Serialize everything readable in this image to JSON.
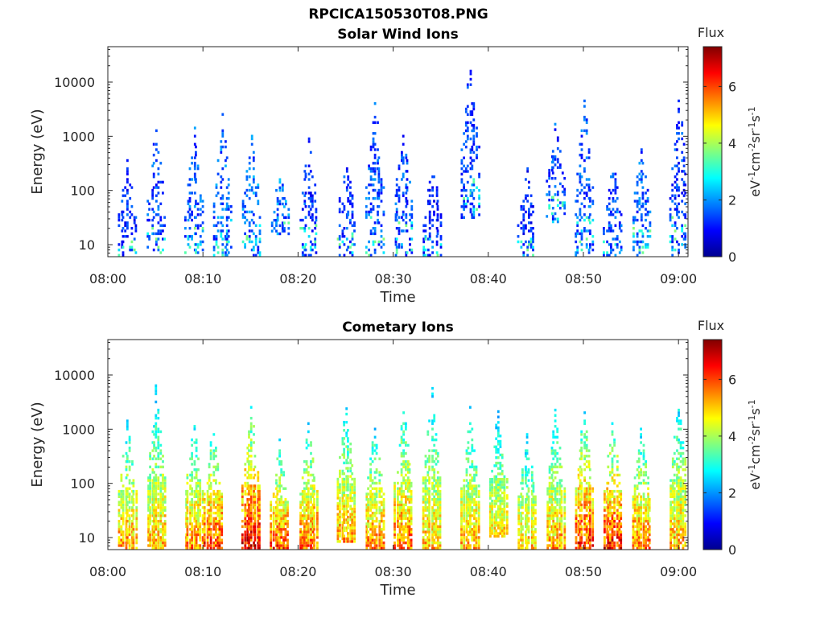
{
  "figure": {
    "title": "RPCICA150530T08.PNG"
  },
  "chart_data": [
    {
      "type": "heatmap",
      "title": "Solar Wind Ions",
      "xlabel": "Time",
      "ylabel": "Energy (eV)",
      "x_ticks": [
        "08:00",
        "08:10",
        "08:20",
        "08:30",
        "08:40",
        "08:50",
        "09:00"
      ],
      "xlim": [
        "08:00",
        "09:01"
      ],
      "y_scale": "log",
      "ylim": [
        6,
        45000
      ],
      "y_ticks": [
        {
          "value": 10,
          "label": "10"
        },
        {
          "value": 100,
          "label": "100"
        },
        {
          "value": 1000,
          "label": "1000"
        },
        {
          "value": 10000,
          "label": "10000"
        }
      ],
      "colorbar": {
        "title": "Flux",
        "label": "eV-1cm-2sr-1s-1",
        "range": [
          0,
          7.4
        ],
        "ticks": [
          0,
          2,
          4,
          6
        ],
        "colormap": "jet"
      },
      "bursts": [
        {
          "time": "08:02",
          "e_min": 6,
          "e_max": 350,
          "flux": 1.3
        },
        {
          "time": "08:05",
          "e_min": 6,
          "e_max": 1500,
          "flux": 1.5
        },
        {
          "time": "08:09",
          "e_min": 6,
          "e_max": 1500,
          "flux": 1.6
        },
        {
          "time": "08:12",
          "e_min": 6,
          "e_max": 2600,
          "flux": 1.7
        },
        {
          "time": "08:15",
          "e_min": 6,
          "e_max": 1100,
          "flux": 1.8
        },
        {
          "time": "08:18",
          "e_min": 15,
          "e_max": 200,
          "flux": 1.8
        },
        {
          "time": "08:21",
          "e_min": 6,
          "e_max": 1000,
          "flux": 1.4
        },
        {
          "time": "08:25",
          "e_min": 6,
          "e_max": 450,
          "flux": 1.4
        },
        {
          "time": "08:28",
          "e_min": 6,
          "e_max": 4500,
          "flux": 1.6
        },
        {
          "time": "08:31",
          "e_min": 6,
          "e_max": 1800,
          "flux": 1.5
        },
        {
          "time": "08:34",
          "e_min": 6,
          "e_max": 350,
          "flux": 1.2
        },
        {
          "time": "08:38",
          "e_min": 30,
          "e_max": 24000,
          "flux": 1.4
        },
        {
          "time": "08:44",
          "e_min": 6,
          "e_max": 300,
          "flux": 1.2
        },
        {
          "time": "08:47",
          "e_min": 25,
          "e_max": 1600,
          "flux": 1.5
        },
        {
          "time": "08:50",
          "e_min": 6,
          "e_max": 5000,
          "flux": 1.6
        },
        {
          "time": "08:53",
          "e_min": 6,
          "e_max": 350,
          "flux": 1.6
        },
        {
          "time": "08:56",
          "e_min": 6,
          "e_max": 700,
          "flux": 1.6
        },
        {
          "time": "09:00",
          "e_min": 6,
          "e_max": 4500,
          "flux": 1.4
        }
      ]
    },
    {
      "type": "heatmap",
      "title": "Cometary Ions",
      "xlabel": "Time",
      "ylabel": "Energy (eV)",
      "x_ticks": [
        "08:00",
        "08:10",
        "08:20",
        "08:30",
        "08:40",
        "08:50",
        "09:00"
      ],
      "xlim": [
        "08:00",
        "09:01"
      ],
      "y_scale": "log",
      "ylim": [
        6,
        45000
      ],
      "y_ticks": [
        {
          "value": 10,
          "label": "10"
        },
        {
          "value": 100,
          "label": "100"
        },
        {
          "value": 1000,
          "label": "1000"
        },
        {
          "value": 10000,
          "label": "10000"
        }
      ],
      "colorbar": {
        "title": "Flux",
        "label": "eV-1cm-2sr-1s-1",
        "range": [
          0,
          7.4
        ],
        "ticks": [
          0,
          2,
          4,
          6
        ],
        "colormap": "jet"
      },
      "bursts": [
        {
          "time": "08:02",
          "e_min": 6,
          "e_max": 1500,
          "flux": 5.5
        },
        {
          "time": "08:05",
          "e_min": 6,
          "e_max": 6000,
          "flux": 5.3
        },
        {
          "time": "08:09",
          "e_min": 6,
          "e_max": 1300,
          "flux": 5.6
        },
        {
          "time": "08:11",
          "e_min": 6,
          "e_max": 1100,
          "flux": 6.2
        },
        {
          "time": "08:15",
          "e_min": 6,
          "e_max": 2700,
          "flux": 6.6
        },
        {
          "time": "08:18",
          "e_min": 6,
          "e_max": 600,
          "flux": 6.0
        },
        {
          "time": "08:21",
          "e_min": 6,
          "e_max": 1300,
          "flux": 5.8
        },
        {
          "time": "08:25",
          "e_min": 8,
          "e_max": 3500,
          "flux": 5.4
        },
        {
          "time": "08:28",
          "e_min": 6,
          "e_max": 1200,
          "flux": 5.6
        },
        {
          "time": "08:31",
          "e_min": 6,
          "e_max": 2800,
          "flux": 5.8
        },
        {
          "time": "08:34",
          "e_min": 6,
          "e_max": 5800,
          "flux": 5.2
        },
        {
          "time": "08:38",
          "e_min": 6,
          "e_max": 2500,
          "flux": 5.3
        },
        {
          "time": "08:41",
          "e_min": 10,
          "e_max": 2400,
          "flux": 5.0
        },
        {
          "time": "08:44",
          "e_min": 6,
          "e_max": 800,
          "flux": 5.2
        },
        {
          "time": "08:47",
          "e_min": 6,
          "e_max": 2700,
          "flux": 5.4
        },
        {
          "time": "08:50",
          "e_min": 6,
          "e_max": 1900,
          "flux": 6.3
        },
        {
          "time": "08:53",
          "e_min": 6,
          "e_max": 1400,
          "flux": 6.4
        },
        {
          "time": "08:56",
          "e_min": 6,
          "e_max": 1000,
          "flux": 5.8
        },
        {
          "time": "09:00",
          "e_min": 6,
          "e_max": 4400,
          "flux": 5.3
        }
      ]
    }
  ]
}
